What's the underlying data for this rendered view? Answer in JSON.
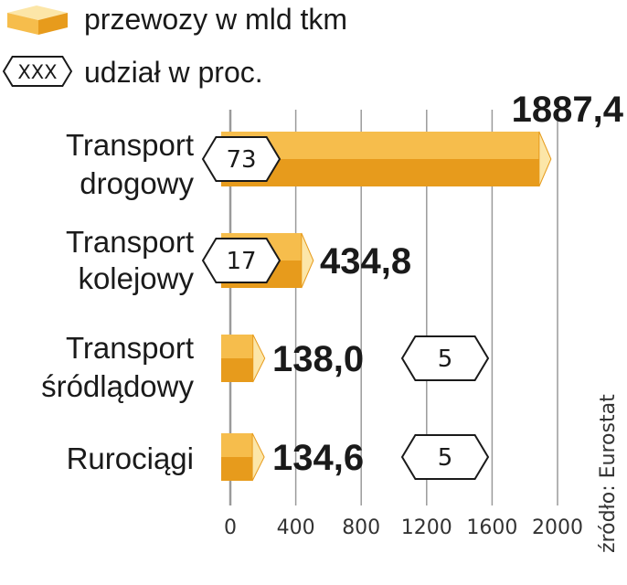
{
  "chart_data": {
    "type": "bar",
    "orientation": "horizontal",
    "categories": [
      [
        "Transport",
        "drogowy"
      ],
      [
        "Transport",
        "kolejowy"
      ],
      [
        "Transport",
        "śródlądowy"
      ],
      [
        "Rurociągi"
      ]
    ],
    "values": [
      1887.4,
      434.8,
      138.0,
      134.6
    ],
    "value_labels": [
      "1887,4",
      "434,8",
      "138,0",
      "134,6"
    ],
    "shares": [
      73,
      17,
      5,
      5
    ],
    "share_labels": [
      "73",
      "17",
      "5",
      "5"
    ],
    "xlim": [
      0,
      2000
    ],
    "xticks": [
      0,
      400,
      800,
      1200,
      1600,
      2000
    ],
    "xtick_labels": [
      "0",
      "400",
      "800",
      "1200",
      "1600",
      "2000"
    ],
    "grid": true,
    "legend": {
      "placement": "top-left",
      "items": [
        {
          "symbol": "bar",
          "label": "przewozy w mld tkm"
        },
        {
          "symbol": "hexagon",
          "symbol_text": "XXX",
          "label": "udział w proc."
        }
      ]
    },
    "source": "źródło: Eurostat",
    "colors": {
      "bar_top": "#f6bd4c",
      "bar_bottom": "#e79b1c",
      "bar_cap": "#fce6a8",
      "grid": "#9a9a9a",
      "text": "#1a1a1a"
    }
  }
}
